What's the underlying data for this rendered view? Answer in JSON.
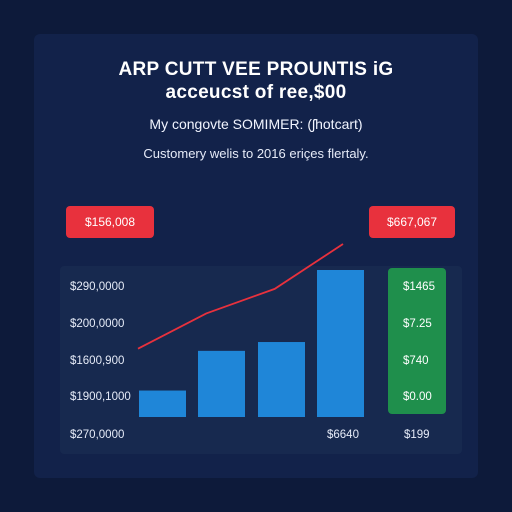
{
  "header": {
    "title_line1": "ARP CUTT VEE PROUNTIS iG",
    "title_line2": "acceucst of ree,$00",
    "subtitle": "My congovte SOMIMER: (ʃhotcart)",
    "caption": "Customery welis to 2016 eriçes flertaly."
  },
  "badges": {
    "left": "$156,008",
    "right": "$667,067"
  },
  "colors": {
    "background": "#0d1a3a",
    "panel": "#17294f",
    "bar": "#1f86d8",
    "trend_line": "#e8313d",
    "badge": "#e8313d",
    "green_column": "#1f8f4c"
  },
  "chart_data": {
    "type": "bar",
    "title": "ARP CUTT VEE PROUNTIS iG acceucst of ree,$00",
    "y_tick_labels": [
      "$290,0000",
      "$200,0000",
      "$1600,900",
      "$1900,1000"
    ],
    "bottom_labels": [
      "$270,0000",
      "$6640",
      "$199"
    ],
    "right_column_labels": [
      "$1465",
      "$7.25",
      "$740",
      "$0.00"
    ],
    "values": [
      18,
      45,
      51,
      100
    ],
    "ylim": [
      0,
      100
    ],
    "trend_line": [
      {
        "x": 0,
        "y": 23
      },
      {
        "x": 1,
        "y": 49
      },
      {
        "x": 2,
        "y": 67
      },
      {
        "x": 3,
        "y": 100
      }
    ],
    "grid": false,
    "legend": "none"
  }
}
